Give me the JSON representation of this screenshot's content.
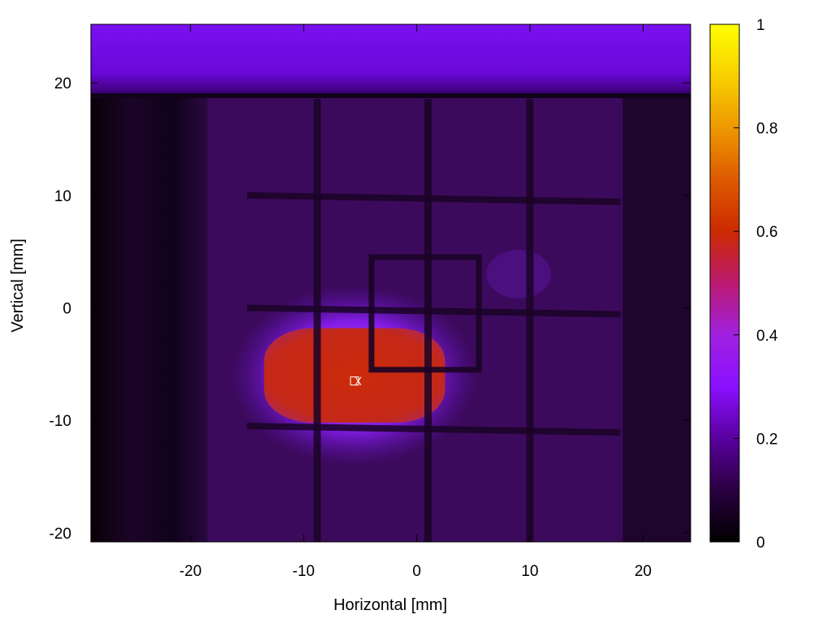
{
  "chart_data": {
    "type": "heatmap",
    "title": "",
    "xlabel": "Horizontal [mm]",
    "ylabel": "Vertical [mm]",
    "xlim": [
      -28.8,
      24.2
    ],
    "ylim": [
      -20.8,
      25.2
    ],
    "x_ticks": [
      -20,
      -10,
      0,
      10,
      20
    ],
    "x_tick_labels": [
      "-20",
      "-10",
      "0",
      "10",
      "20"
    ],
    "y_ticks": [
      20,
      10,
      0,
      -10,
      -20
    ],
    "y_tick_labels": [
      "20",
      "10",
      "0",
      "-10",
      "-20"
    ],
    "colorbar": {
      "range": [
        0,
        1
      ],
      "ticks": [
        0,
        0.2,
        0.4,
        0.6,
        0.8,
        1
      ],
      "tick_labels": [
        "0",
        "0.2",
        "0.4",
        "0.6",
        "0.8",
        "1"
      ],
      "colormap": [
        "#000000",
        "#2a0040",
        "#5a00a0",
        "#8a10ff",
        "#a020e0",
        "#bb1a70",
        "#cc2a00",
        "#dd5a00",
        "#ee9800",
        "#f8d000",
        "#ffff00"
      ]
    },
    "background_level": 0.12,
    "top_band": {
      "y_min": 19,
      "y_max": 25.2,
      "level": 0.3
    },
    "left_dark_region": {
      "x_max": -18.5,
      "level": 0.03
    },
    "hot_spot": {
      "x_min": -13.5,
      "x_max": 2.5,
      "y_min": -10.2,
      "y_max": -1.8,
      "level": 0.5
    },
    "grid_lines_vertical_mm": [
      -8.8,
      1,
      10
    ],
    "grid_lines_horizontal_mm": [
      10,
      0,
      -10.5
    ],
    "inner_frame": {
      "x_min": -4,
      "x_max": 5.5,
      "y_min": -5.5,
      "y_max": 4.5
    },
    "center_marker": {
      "label": "",
      "x": -5.5,
      "y": -6.5
    }
  }
}
